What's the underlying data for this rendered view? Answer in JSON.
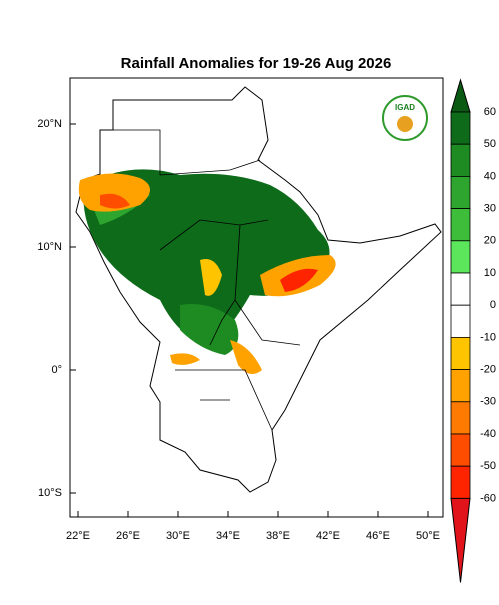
{
  "title": "Rainfall Anomalies for 19-26 Aug 2026",
  "logo": "IGAD",
  "map": {
    "lat_labels": [
      "20°N",
      "10°N",
      "0°",
      "10°S"
    ],
    "lon_labels": [
      "22°E",
      "26°E",
      "30°E",
      "34°E",
      "38°E",
      "42°E",
      "46°E",
      "50°E"
    ]
  },
  "colorbar": {
    "ticks": [
      60,
      50,
      40,
      30,
      20,
      10,
      0,
      -10,
      -20,
      -30,
      -40,
      -50,
      -60
    ],
    "colors": [
      "#0b5a14",
      "#0e6b1a",
      "#1d8a22",
      "#2ea52e",
      "#3dbd3a",
      "#5ce65c",
      "#ffffff",
      "#ffffff",
      "#ffc400",
      "#ffa200",
      "#ff7a00",
      "#ff4d00",
      "#ff2400",
      "#e0141a"
    ]
  }
}
